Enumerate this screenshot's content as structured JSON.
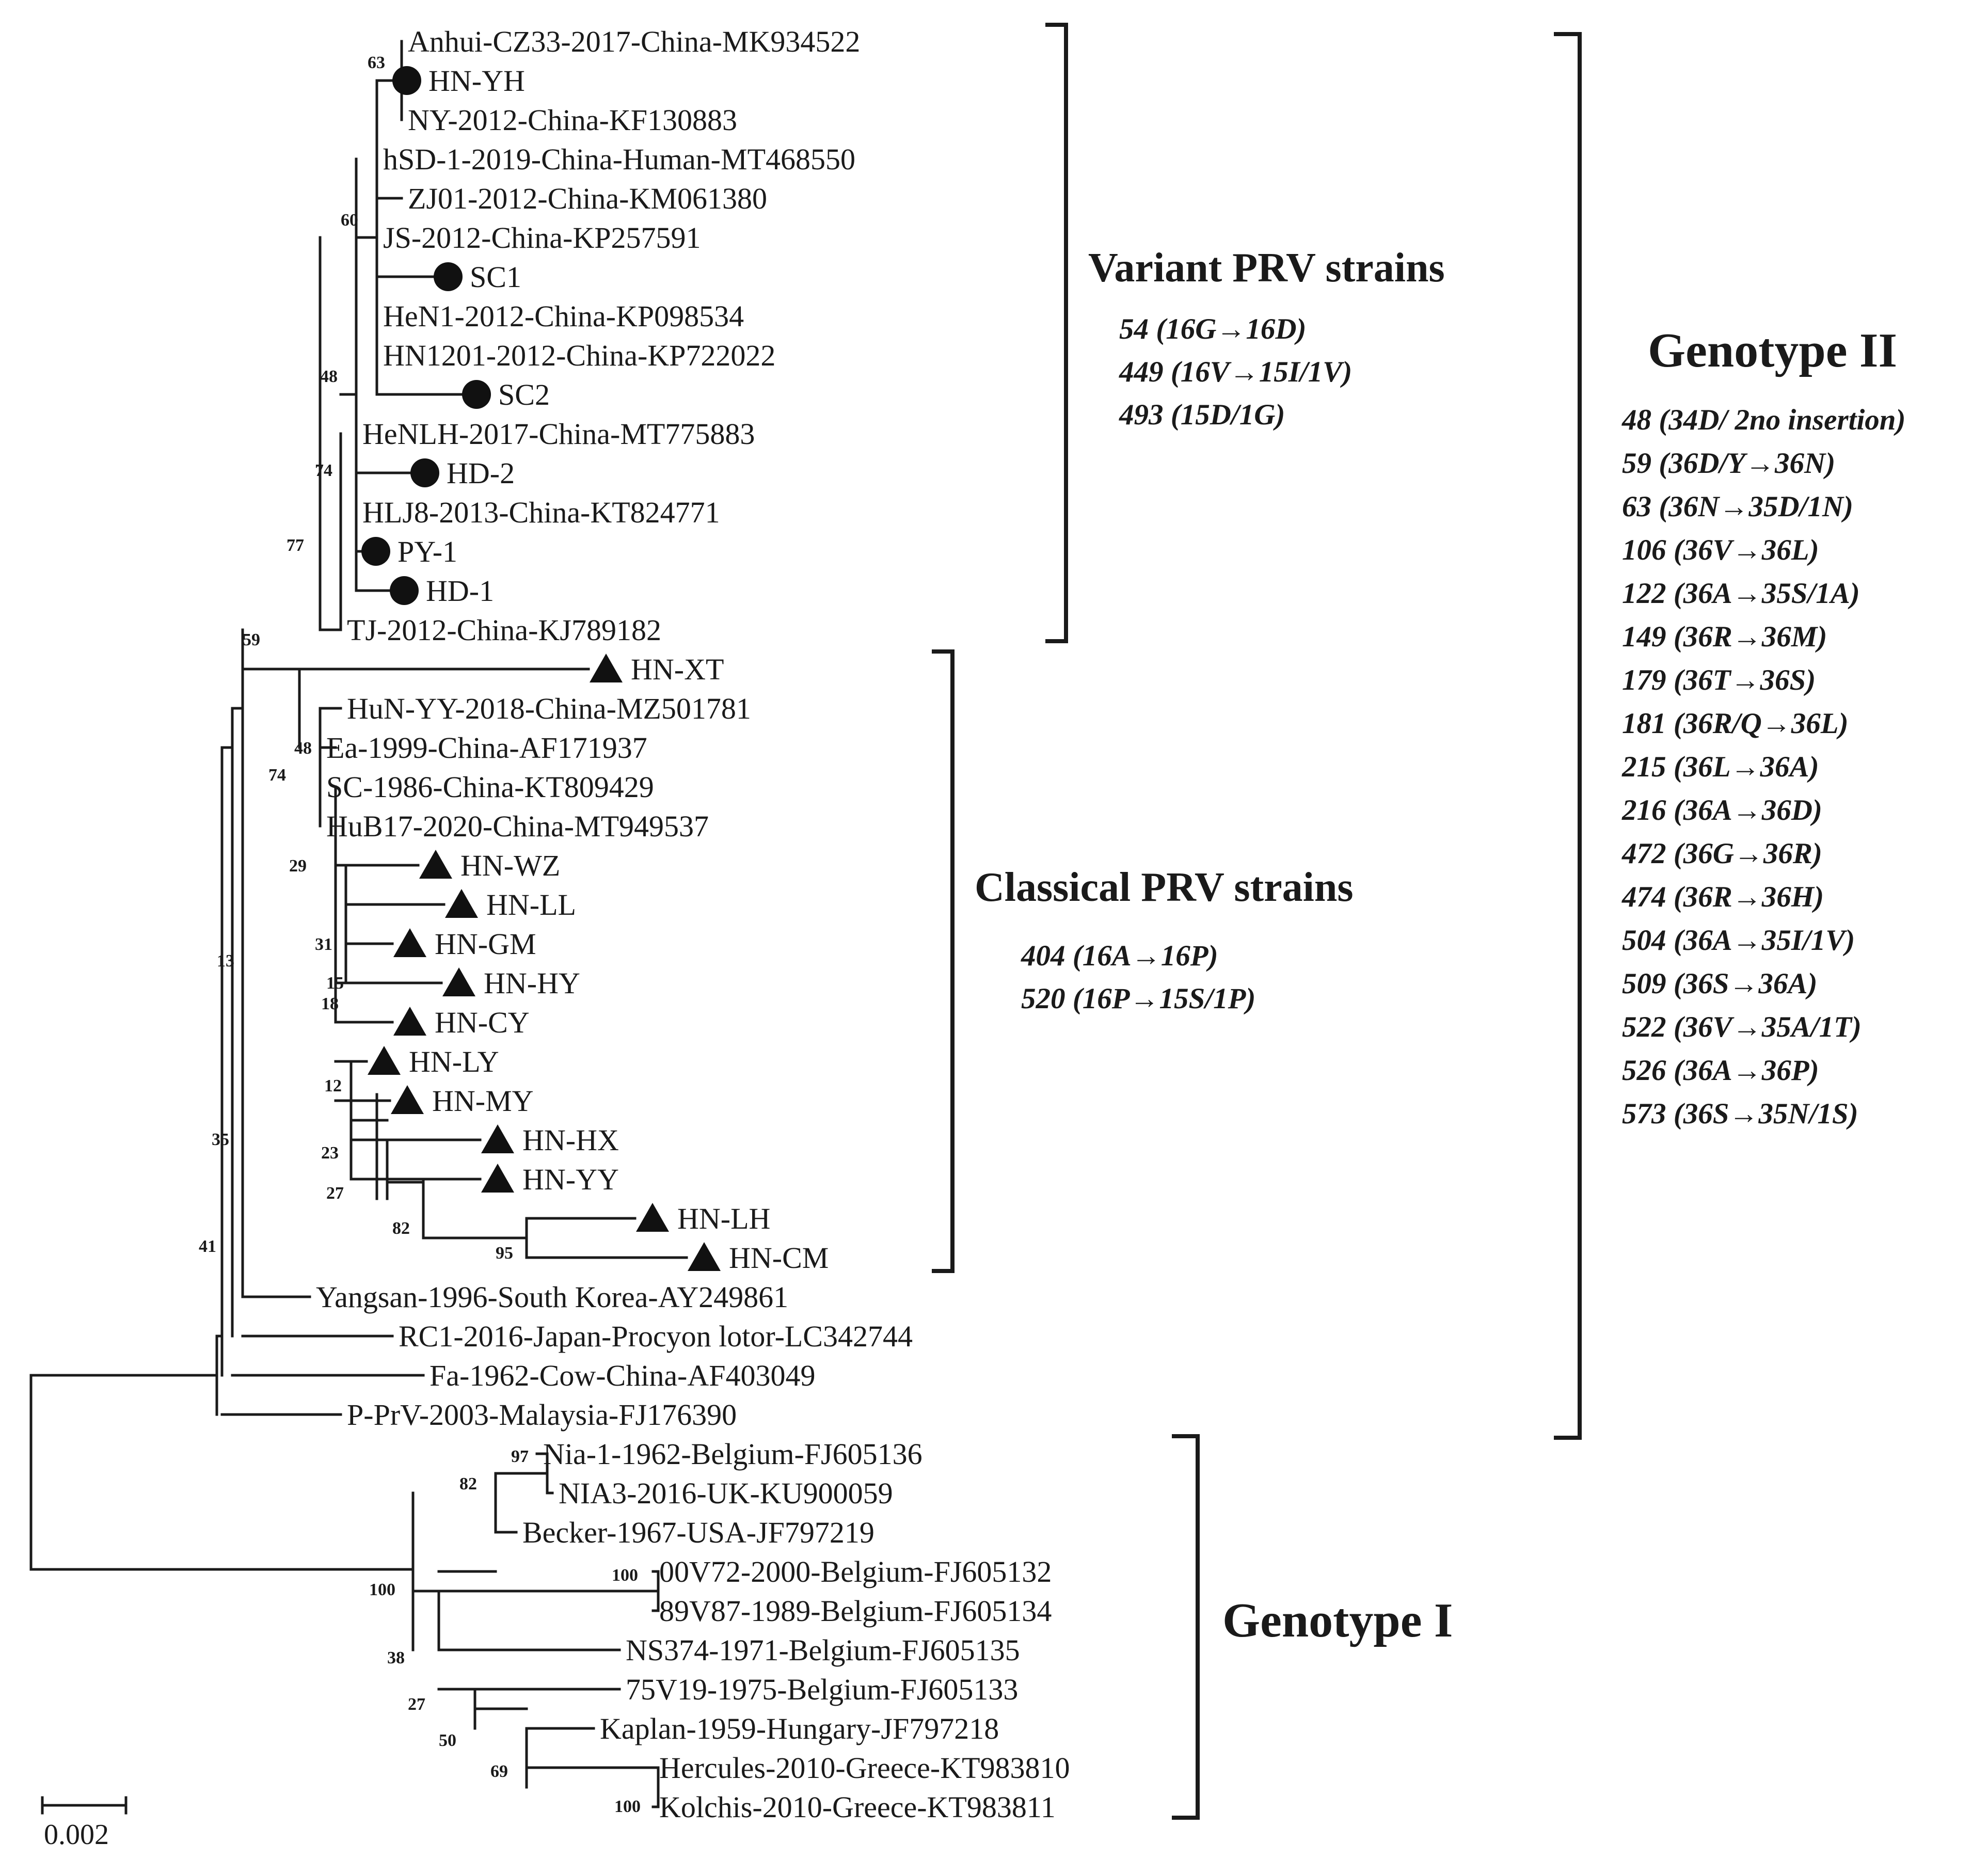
{
  "figure": {
    "scale_bar": {
      "label": "0.002"
    }
  },
  "taxa": [
    {
      "id": "anhui",
      "label": "Anhui-CZ33-2017-China-MK934522",
      "marker": "none"
    },
    {
      "id": "hnyh",
      "label": "HN-YH",
      "marker": "circle"
    },
    {
      "id": "ny2012",
      "label": "NY-2012-China-KF130883",
      "marker": "none"
    },
    {
      "id": "hsd1",
      "label": "hSD-1-2019-China-Human-MT468550",
      "marker": "none"
    },
    {
      "id": "zj01",
      "label": "ZJ01-2012-China-KM061380",
      "marker": "none"
    },
    {
      "id": "js2012",
      "label": "JS-2012-China-KP257591",
      "marker": "none"
    },
    {
      "id": "sc1",
      "label": "SC1",
      "marker": "circle"
    },
    {
      "id": "hen1",
      "label": "HeN1-2012-China-KP098534",
      "marker": "none"
    },
    {
      "id": "hn1201",
      "label": "HN1201-2012-China-KP722022",
      "marker": "none"
    },
    {
      "id": "sc2",
      "label": "SC2",
      "marker": "circle"
    },
    {
      "id": "henlh",
      "label": "HeNLH-2017-China-MT775883",
      "marker": "none"
    },
    {
      "id": "hd2",
      "label": "HD-2",
      "marker": "circle"
    },
    {
      "id": "hlj8",
      "label": "HLJ8-2013-China-KT824771",
      "marker": "none"
    },
    {
      "id": "py1",
      "label": "PY-1",
      "marker": "circle"
    },
    {
      "id": "hd1",
      "label": "HD-1",
      "marker": "circle"
    },
    {
      "id": "tj2012",
      "label": "TJ-2012-China-KJ789182",
      "marker": "none"
    },
    {
      "id": "hnxt",
      "label": "HN-XT",
      "marker": "triangle"
    },
    {
      "id": "hunyy",
      "label": "HuN-YY-2018-China-MZ501781",
      "marker": "none"
    },
    {
      "id": "ea1999",
      "label": "Ea-1999-China-AF171937",
      "marker": "none"
    },
    {
      "id": "sc1986",
      "label": "SC-1986-China-KT809429",
      "marker": "none"
    },
    {
      "id": "hub17",
      "label": "HuB17-2020-China-MT949537",
      "marker": "none"
    },
    {
      "id": "hnwz",
      "label": "HN-WZ",
      "marker": "triangle"
    },
    {
      "id": "hnll",
      "label": "HN-LL",
      "marker": "triangle"
    },
    {
      "id": "hngm",
      "label": "HN-GM",
      "marker": "triangle"
    },
    {
      "id": "hnhy",
      "label": "HN-HY",
      "marker": "triangle"
    },
    {
      "id": "hncy",
      "label": "HN-CY",
      "marker": "triangle"
    },
    {
      "id": "hnly",
      "label": "HN-LY",
      "marker": "triangle"
    },
    {
      "id": "hnmy",
      "label": "HN-MY",
      "marker": "triangle"
    },
    {
      "id": "hnhx",
      "label": "HN-HX",
      "marker": "triangle"
    },
    {
      "id": "hnyy",
      "label": "HN-YY",
      "marker": "triangle"
    },
    {
      "id": "hnlh",
      "label": "HN-LH",
      "marker": "triangle"
    },
    {
      "id": "hncm",
      "label": "HN-CM",
      "marker": "triangle"
    },
    {
      "id": "yangsan",
      "label": "Yangsan-1996-South Korea-AY249861",
      "marker": "none"
    },
    {
      "id": "rc1",
      "label": "RC1-2016-Japan-Procyon lotor-LC342744",
      "marker": "none"
    },
    {
      "id": "fa1962",
      "label": "Fa-1962-Cow-China-AF403049",
      "marker": "none"
    },
    {
      "id": "pprv",
      "label": "P-PrV-2003-Malaysia-FJ176390",
      "marker": "none"
    },
    {
      "id": "nia1",
      "label": "Nia-1-1962-Belgium-FJ605136",
      "marker": "none"
    },
    {
      "id": "nia3",
      "label": "NIA3-2016-UK-KU900059",
      "marker": "none"
    },
    {
      "id": "becker",
      "label": "Becker-1967-USA-JF797219",
      "marker": "none"
    },
    {
      "id": "v00v72",
      "label": "00V72-2000-Belgium-FJ605132",
      "marker": "none"
    },
    {
      "id": "v89v87",
      "label": "89V87-1989-Belgium-FJ605134",
      "marker": "none"
    },
    {
      "id": "ns374",
      "label": "NS374-1971-Belgium-FJ605135",
      "marker": "none"
    },
    {
      "id": "v75v19",
      "label": "75V19-1975-Belgium-FJ605133",
      "marker": "none"
    },
    {
      "id": "kaplan",
      "label": "Kaplan-1959-Hungary-JF797218",
      "marker": "none"
    },
    {
      "id": "hercules",
      "label": "Hercules-2010-Greece-KT983810",
      "marker": "none"
    },
    {
      "id": "kolchis",
      "label": "Kolchis-2010-Greece-KT983811",
      "marker": "none"
    }
  ],
  "bootstrap_values": [
    "63",
    "60",
    "48",
    "74",
    "77",
    "59",
    "48",
    "74",
    "29",
    "31",
    "15",
    "18",
    "12",
    "23",
    "27",
    "82",
    "95",
    "13",
    "35",
    "41",
    "97",
    "82",
    "100",
    "100",
    "38",
    "27",
    "50",
    "69",
    "100"
  ],
  "groups": {
    "variant": {
      "title": "Variant PRV strains",
      "mutations": [
        "54 (16G→16D)",
        "449 (16V→15I/1V)",
        "493 (15D/1G)"
      ]
    },
    "classical": {
      "title": "Classical PRV strains",
      "mutations": [
        "404 (16A→16P)",
        "520 (16P→15S/1P)"
      ]
    },
    "genotype2": {
      "title": "Genotype II",
      "mutations": [
        "48 (34D/ 2no insertion)",
        "59 (36D/Y→36N)",
        "63 (36N→35D/1N)",
        "106 (36V→36L)",
        "122 (36A→35S/1A)",
        "149 (36R→36M)",
        "179 (36T→36S)",
        "181 (36R/Q→36L)",
        "215 (36L→36A)",
        "216 (36A→36D)",
        "472 (36G→36R)",
        "474 (36R→36H)",
        "504 (36A→35I/1V)",
        "509 (36S→36A)",
        "522 (36V→35A/1T)",
        "526 (36A→36P)",
        "573 (36S→35N/1S)"
      ]
    },
    "genotype1": {
      "title": "Genotype I"
    }
  }
}
